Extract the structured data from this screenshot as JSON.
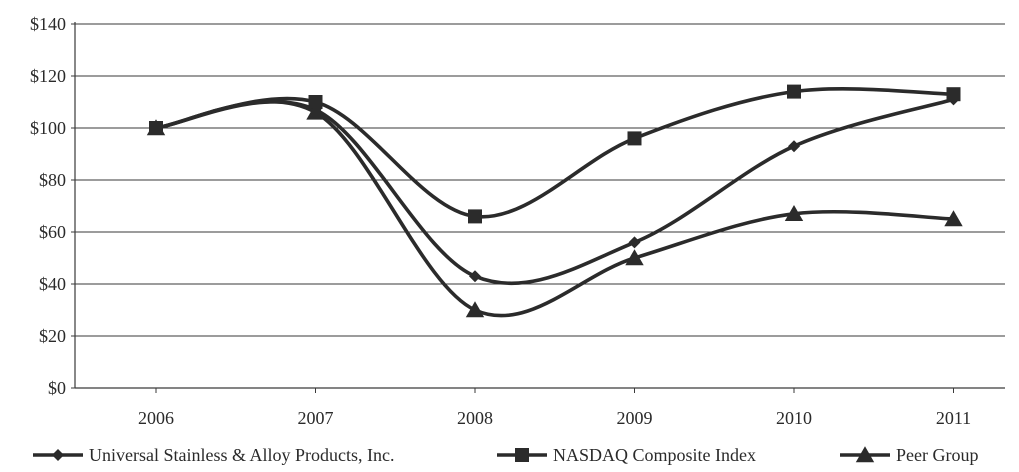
{
  "chart_data": {
    "type": "line",
    "title": "",
    "xlabel": "",
    "ylabel": "",
    "categories": [
      "2006",
      "2007",
      "2008",
      "2009",
      "2010",
      "2011"
    ],
    "ylim": [
      0,
      140
    ],
    "y_ticks": [
      0,
      20,
      40,
      60,
      80,
      100,
      120,
      140
    ],
    "y_tick_labels": [
      "$0",
      "$20",
      "$40",
      "$60",
      "$80",
      "$100",
      "$120",
      "$140"
    ],
    "grid": "horizontal",
    "smooth": true,
    "legend_position": "bottom",
    "line_color": "#2b2b2b",
    "series": [
      {
        "name": "Universal Stainless & Alloy Products, Inc.",
        "marker": "diamond",
        "values": [
          100,
          107,
          43,
          56,
          93,
          111
        ]
      },
      {
        "name": "NASDAQ Composite Index",
        "marker": "square",
        "values": [
          100,
          110,
          66,
          96,
          114,
          113
        ]
      },
      {
        "name": "Peer Group",
        "marker": "triangle",
        "values": [
          100,
          106,
          30,
          50,
          67,
          65
        ]
      }
    ]
  }
}
